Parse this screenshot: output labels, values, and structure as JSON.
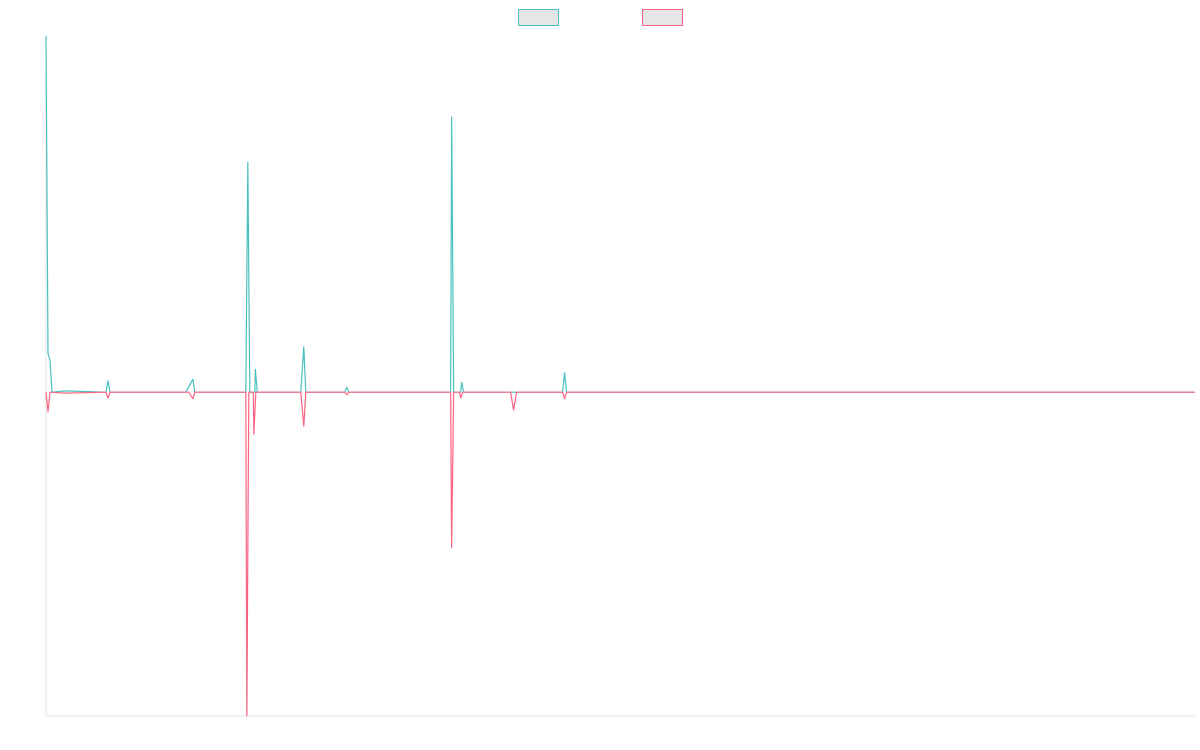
{
  "chart_data": {
    "type": "line",
    "title": "",
    "xlabel": "",
    "ylabel": "",
    "legend": {
      "placement": "top-center",
      "entries": [
        {
          "label": "",
          "color": "#4bc0c0"
        },
        {
          "label": "",
          "color": "#ff6384"
        }
      ]
    },
    "grid": false,
    "x_range": [
      0,
      230
    ],
    "y_range": [
      -100,
      110
    ],
    "series": [
      {
        "color": "#4bc0c0",
        "points": [
          [
            0,
            110
          ],
          [
            0.4,
            12
          ],
          [
            0.8,
            10
          ],
          [
            1.2,
            0
          ],
          [
            4,
            0.4
          ],
          [
            12,
            0
          ],
          [
            12.4,
            3.5
          ],
          [
            12.8,
            0
          ],
          [
            28,
            0
          ],
          [
            29.4,
            4
          ],
          [
            29.8,
            0
          ],
          [
            40,
            0
          ],
          [
            40.4,
            71
          ],
          [
            40.8,
            0
          ],
          [
            41.8,
            0
          ],
          [
            41.9,
            7
          ],
          [
            42.3,
            0
          ],
          [
            51,
            0
          ],
          [
            51.6,
            14
          ],
          [
            52,
            0
          ],
          [
            59.8,
            0
          ],
          [
            60.2,
            1.5
          ],
          [
            60.6,
            0
          ],
          [
            81,
            0
          ],
          [
            81.2,
            85
          ],
          [
            81.6,
            0
          ],
          [
            83,
            0
          ],
          [
            83.2,
            3
          ],
          [
            83.6,
            0
          ],
          [
            103.4,
            0
          ],
          [
            103.8,
            6
          ],
          [
            104.2,
            0
          ],
          [
            230,
            0
          ]
        ]
      },
      {
        "color": "#ff6384",
        "points": [
          [
            0,
            0
          ],
          [
            0.4,
            -6
          ],
          [
            0.8,
            0
          ],
          [
            4,
            -0.3
          ],
          [
            12,
            0
          ],
          [
            12.4,
            -1.8
          ],
          [
            12.8,
            0
          ],
          [
            28.6,
            0
          ],
          [
            29.4,
            -2
          ],
          [
            29.8,
            0
          ],
          [
            40,
            0
          ],
          [
            40.2,
            -100
          ],
          [
            40.6,
            0
          ],
          [
            41.5,
            0
          ],
          [
            41.6,
            -13
          ],
          [
            42,
            0
          ],
          [
            44.5,
            0
          ],
          [
            51,
            0
          ],
          [
            51.6,
            -10.5
          ],
          [
            52,
            0
          ],
          [
            59.8,
            0
          ],
          [
            60.2,
            -0.8
          ],
          [
            60.6,
            0
          ],
          [
            81,
            0
          ],
          [
            81.2,
            -48
          ],
          [
            81.6,
            0
          ],
          [
            82.8,
            0
          ],
          [
            83,
            -1.8
          ],
          [
            83.4,
            0
          ],
          [
            93,
            0
          ],
          [
            93.6,
            -5.5
          ],
          [
            94.2,
            0
          ],
          [
            103.4,
            0
          ],
          [
            103.8,
            -2
          ],
          [
            104.2,
            0
          ],
          [
            230,
            0
          ]
        ]
      }
    ]
  }
}
